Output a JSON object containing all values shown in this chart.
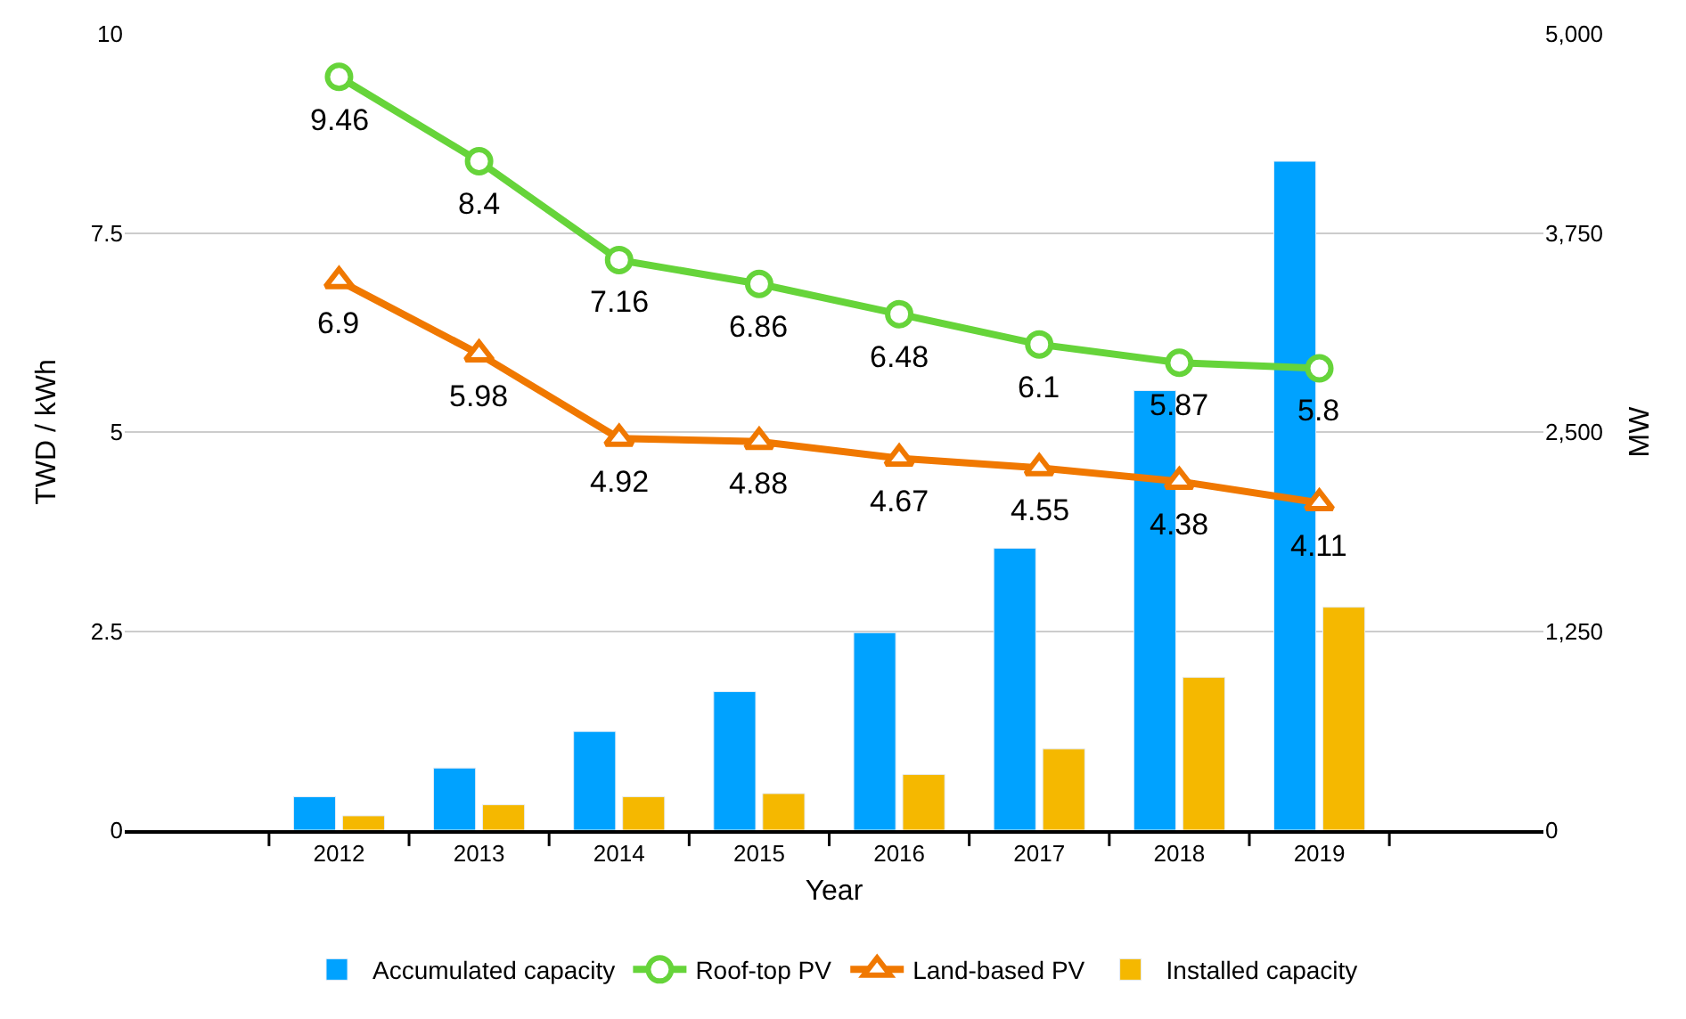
{
  "chart_data": {
    "type": "bar",
    "xlabel": "Year",
    "ylabel": "TWD / kWh",
    "y2label": "MW",
    "categories": [
      "2012",
      "2013",
      "2014",
      "2015",
      "2016",
      "2017",
      "2018",
      "2019"
    ],
    "series": [
      {
        "name": "Accumulated capacity",
        "axis": "y2",
        "color": "#00a2ff",
        "values": [
          210,
          390,
          620,
          870,
          1240,
          1770,
          2760,
          4200
        ]
      },
      {
        "name": "Roof-top PV",
        "type": "line",
        "marker": "circle",
        "color": "#66d43a",
        "values": [
          9.46,
          8.4,
          7.16,
          6.86,
          6.48,
          6.1,
          5.87,
          5.8
        ],
        "value_labels": [
          "9.46",
          "8.4",
          "7.16",
          "6.86",
          "6.48",
          "6.1",
          "5.87",
          "5.8"
        ]
      },
      {
        "name": "Land-based PV",
        "type": "line",
        "marker": "triangle",
        "color": "#f07800",
        "values": [
          6.9,
          5.98,
          4.92,
          4.88,
          4.67,
          4.55,
          4.38,
          4.11
        ],
        "value_labels": [
          "6.9",
          "5.98",
          "4.92",
          "4.88",
          "4.67",
          "4.55",
          "4.38",
          "4.11"
        ]
      },
      {
        "name": "Installed capacity",
        "axis": "y2",
        "color": "#f5b800",
        "values": [
          90,
          160,
          210,
          230,
          350,
          510,
          960,
          1400
        ]
      }
    ],
    "ylim": [
      0,
      10
    ],
    "yticks": [
      0,
      2.5,
      5,
      7.5,
      10
    ],
    "y2lim": [
      0,
      5000
    ],
    "y2ticks": [
      0,
      {
        "value": 1250,
        "label": "1,250"
      },
      {
        "value": 2500,
        "label": "2,500"
      },
      {
        "value": 3750,
        "label": "3,750"
      },
      {
        "value": 5000,
        "label": "5,000"
      }
    ],
    "grid": "y",
    "legend": "bottom"
  }
}
